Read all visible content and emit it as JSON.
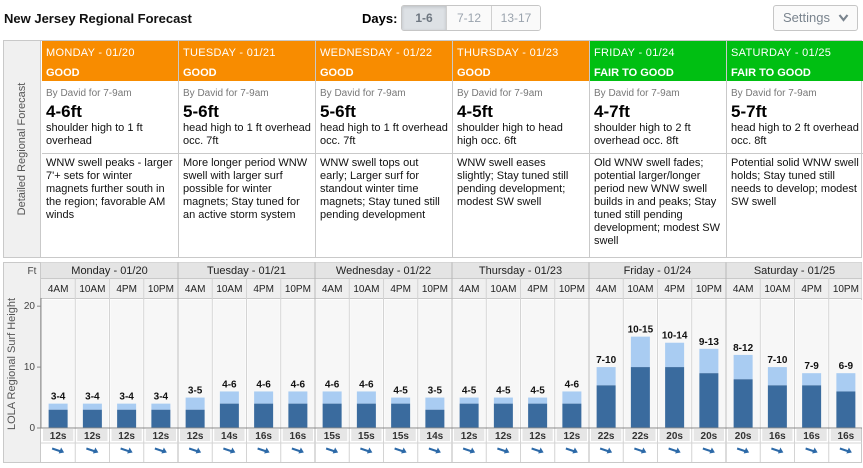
{
  "header": {
    "title": "New Jersey Regional Forecast",
    "days_label": "Days:",
    "days_options": [
      "1-6",
      "7-12",
      "13-17"
    ],
    "days_selected": "1-6",
    "settings_label": "Settings",
    "settings_icon": "chevron-down-icon"
  },
  "forecast": {
    "side_label": "Detailed Regional Forecast",
    "colors": {
      "good": "#f88c00",
      "fair_to_good": "#00bf12"
    },
    "days": [
      {
        "day": "MONDAY - 01/20",
        "rating": "GOOD",
        "rating_level": "good",
        "author": "By David for 7-9am",
        "height": "4-6ft",
        "desc": "shoulder high to 1 ft overhead",
        "notes": "WNW swell peaks - larger 7'+ sets for winter magnets further south in the region; favorable AM winds"
      },
      {
        "day": "TUESDAY - 01/21",
        "rating": "GOOD",
        "rating_level": "good",
        "author": "By David for 7-9am",
        "height": "5-6ft",
        "desc": "head high to 1 ft overhead occ. 7ft",
        "notes": "More longer period WNW swell with larger surf possible for winter magnets; Stay tuned for an active storm system"
      },
      {
        "day": "WEDNESDAY - 01/22",
        "rating": "GOOD",
        "rating_level": "good",
        "author": "By David for 7-9am",
        "height": "5-6ft",
        "desc": "head high to 1 ft overhead occ. 7ft",
        "notes": "WNW swell tops out early; Larger surf for standout winter time magnets; Stay tuned still pending development"
      },
      {
        "day": "THURSDAY - 01/23",
        "rating": "GOOD",
        "rating_level": "good",
        "author": "By David for 7-9am",
        "height": "4-5ft",
        "desc": "shoulder high to head high occ. 6ft",
        "notes": "WNW swell eases slightly; Stay tuned still pending development; modest SW swell"
      },
      {
        "day": "FRIDAY - 01/24",
        "rating": "FAIR TO GOOD",
        "rating_level": "fair_to_good",
        "author": "By David for 7-9am",
        "height": "4-7ft",
        "desc": "shoulder high to 2 ft overhead occ. 8ft",
        "notes": "Old WNW swell fades; potential larger/longer period new WNW swell builds in and peaks; Stay tuned still pending development; modest SW swell"
      },
      {
        "day": "SATURDAY - 01/25",
        "rating": "FAIR TO GOOD",
        "rating_level": "fair_to_good",
        "author": "By David for 7-9am",
        "height": "5-7ft",
        "desc": "head high to 2 ft overhead occ. 8ft",
        "notes": "Potential solid WNW swell holds; Stay tuned still needs to develop; modest SW swell"
      }
    ]
  },
  "chart_data": {
    "type": "bar",
    "ylabel": "LOLA Regional Surf Height",
    "unit_label": "Ft",
    "ylim": [
      0,
      22
    ],
    "yticks": [
      0,
      10,
      20
    ],
    "grid": false,
    "days": [
      "Monday - 01/20",
      "Tuesday - 01/21",
      "Wednesday - 01/22",
      "Thursday - 01/23",
      "Friday - 01/24",
      "Saturday - 01/25"
    ],
    "times": [
      "4AM",
      "10AM",
      "4PM",
      "10PM"
    ],
    "colors": {
      "low": "#3a6b9e",
      "high": "#a9ccf2"
    },
    "bars": [
      {
        "label": "3-4",
        "low": 3,
        "high": 4,
        "period": "12s"
      },
      {
        "label": "3-4",
        "low": 3,
        "high": 4,
        "period": "12s"
      },
      {
        "label": "3-4",
        "low": 3,
        "high": 4,
        "period": "12s"
      },
      {
        "label": "3-4",
        "low": 3,
        "high": 4,
        "period": "12s"
      },
      {
        "label": "3-5",
        "low": 3,
        "high": 5,
        "period": "12s"
      },
      {
        "label": "4-6",
        "low": 4,
        "high": 6,
        "period": "14s"
      },
      {
        "label": "4-6",
        "low": 4,
        "high": 6,
        "period": "16s"
      },
      {
        "label": "4-6",
        "low": 4,
        "high": 6,
        "period": "16s"
      },
      {
        "label": "4-6",
        "low": 4,
        "high": 6,
        "period": "15s"
      },
      {
        "label": "4-6",
        "low": 4,
        "high": 6,
        "period": "15s"
      },
      {
        "label": "4-5",
        "low": 4,
        "high": 5,
        "period": "15s"
      },
      {
        "label": "3-5",
        "low": 3,
        "high": 5,
        "period": "14s"
      },
      {
        "label": "4-5",
        "low": 4,
        "high": 5,
        "period": "12s"
      },
      {
        "label": "4-5",
        "low": 4,
        "high": 5,
        "period": "12s"
      },
      {
        "label": "4-5",
        "low": 4,
        "high": 5,
        "period": "12s"
      },
      {
        "label": "4-6",
        "low": 4,
        "high": 6,
        "period": "12s"
      },
      {
        "label": "7-10",
        "low": 7,
        "high": 10,
        "period": "22s"
      },
      {
        "label": "10-15",
        "low": 10,
        "high": 15,
        "period": "22s"
      },
      {
        "label": "10-14",
        "low": 10,
        "high": 14,
        "period": "20s"
      },
      {
        "label": "9-13",
        "low": 9,
        "high": 13,
        "period": "20s"
      },
      {
        "label": "8-12",
        "low": 8,
        "high": 12,
        "period": "20s"
      },
      {
        "label": "7-10",
        "low": 7,
        "high": 10,
        "period": "16s"
      },
      {
        "label": "7-9",
        "low": 7,
        "high": 9,
        "period": "16s"
      },
      {
        "label": "6-9",
        "low": 6,
        "high": 9,
        "period": "16s"
      }
    ]
  }
}
